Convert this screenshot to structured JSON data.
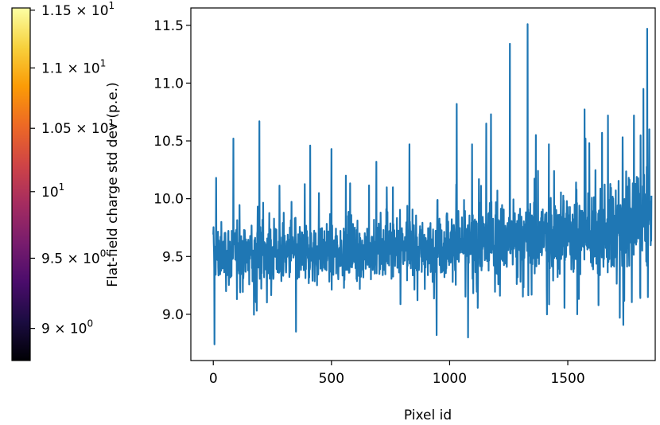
{
  "chart_data": {
    "type": "line",
    "xlabel": "Pixel id",
    "ylabel": "Flat-field charge std dev (p.e.)",
    "xlim": [
      -95,
      1870
    ],
    "ylim": [
      8.6,
      11.65
    ],
    "x_ticks": [
      0,
      500,
      1000,
      1500
    ],
    "y_ticks": [
      9.0,
      9.5,
      10.0,
      10.5,
      11.0,
      11.5
    ],
    "x_tick_labels": [
      "0",
      "500",
      "1000",
      "1500"
    ],
    "y_tick_labels": [
      "9.0",
      "9.5",
      "10.0",
      "10.5",
      "11.0",
      "11.5"
    ],
    "series": [
      {
        "color": "#1f77b4",
        "n_points": 1855,
        "x_range": [
          0,
          1854
        ],
        "band": {
          "x": [
            0,
            100,
            200,
            300,
            400,
            500,
            600,
            700,
            800,
            900,
            1000,
            1100,
            1200,
            1300,
            1400,
            1500,
            1600,
            1700,
            1800,
            1854
          ],
          "mean": [
            9.52,
            9.53,
            9.55,
            9.52,
            9.53,
            9.54,
            9.53,
            9.55,
            9.57,
            9.57,
            9.6,
            9.62,
            9.65,
            9.66,
            9.68,
            9.7,
            9.72,
            9.75,
            9.78,
            9.8
          ],
          "spread": [
            0.16,
            0.16,
            0.16,
            0.16,
            0.16,
            0.16,
            0.16,
            0.16,
            0.17,
            0.17,
            0.18,
            0.19,
            0.2,
            0.2,
            0.21,
            0.21,
            0.22,
            0.22,
            0.23,
            0.23
          ]
        },
        "peaks": [
          {
            "x": 5,
            "y": 8.74
          },
          {
            "x": 12,
            "y": 10.18
          },
          {
            "x": 85,
            "y": 10.52
          },
          {
            "x": 195,
            "y": 10.67
          },
          {
            "x": 350,
            "y": 8.85
          },
          {
            "x": 410,
            "y": 10.46
          },
          {
            "x": 500,
            "y": 10.43
          },
          {
            "x": 690,
            "y": 10.32
          },
          {
            "x": 830,
            "y": 10.47
          },
          {
            "x": 945,
            "y": 8.82
          },
          {
            "x": 1030,
            "y": 10.82
          },
          {
            "x": 1078,
            "y": 8.8
          },
          {
            "x": 1095,
            "y": 10.47
          },
          {
            "x": 1155,
            "y": 10.65
          },
          {
            "x": 1175,
            "y": 10.73
          },
          {
            "x": 1255,
            "y": 11.34
          },
          {
            "x": 1330,
            "y": 11.51
          },
          {
            "x": 1365,
            "y": 10.55
          },
          {
            "x": 1420,
            "y": 10.47
          },
          {
            "x": 1540,
            "y": 9.0
          },
          {
            "x": 1575,
            "y": 10.52
          },
          {
            "x": 1645,
            "y": 10.57
          },
          {
            "x": 1670,
            "y": 10.72
          },
          {
            "x": 1720,
            "y": 8.97
          },
          {
            "x": 1780,
            "y": 10.72
          },
          {
            "x": 1820,
            "y": 10.95
          },
          {
            "x": 1836,
            "y": 11.47
          },
          {
            "x": 1845,
            "y": 10.6
          },
          {
            "x": 1852,
            "y": 9.77
          }
        ]
      }
    ]
  },
  "colorbar": {
    "type": "colorbar",
    "scale": "log",
    "colormap": "inferno",
    "limits": [
      8.78,
      11.52
    ],
    "stops": [
      "#000004",
      "#1b0c41",
      "#4a0c6b",
      "#781c6d",
      "#a52c60",
      "#cf4446",
      "#ed6925",
      "#fb9b06",
      "#f7d13d",
      "#fcffa4"
    ],
    "ticks": [
      {
        "value": 9.0,
        "base": "9 × 10",
        "exp": "0"
      },
      {
        "value": 9.5,
        "base": "9.5 × 10",
        "exp": "0"
      },
      {
        "value": 10.0,
        "base": "10",
        "exp": "1"
      },
      {
        "value": 10.5,
        "base": "1.05 × 10",
        "exp": "1"
      },
      {
        "value": 11.0,
        "base": "1.1 × 10",
        "exp": "1"
      },
      {
        "value": 11.5,
        "base": "1.15 × 10",
        "exp": "1"
      }
    ]
  }
}
